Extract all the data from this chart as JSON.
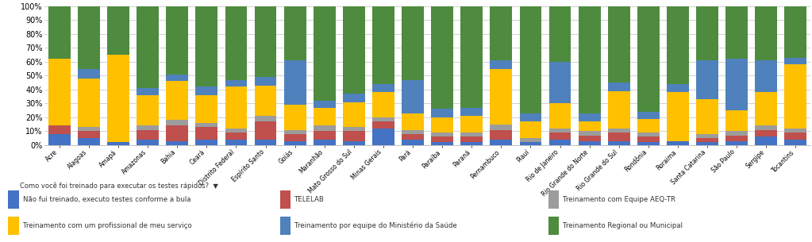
{
  "states": [
    "Acre",
    "Alagoas",
    "Amapá",
    "Amazonas",
    "Bahia",
    "Ceará",
    "Distrito Federal",
    "Espírito Santo",
    "Goiás",
    "Maranhão",
    "Mato Grosso do Sul",
    "Minas Gerais",
    "Pará",
    "Paraíba",
    "Paraná",
    "Pernambuco",
    "Piauí",
    "Rio de Janeiro",
    "Rio Grande do Norte",
    "Rio Grande do Sul",
    "Rondônia",
    "Roraima",
    "Santa Catarina",
    "São Paulo",
    "Sergipe",
    "Tocantins"
  ],
  "series_names": [
    "Não fui treinado, executo testes conforme a bula",
    "TELELAB",
    "Treinamento com Equipe AEQ-TR",
    "Treinamento com um profissional de meu serviço",
    "Treinamento por equipe do Ministério da Saúde",
    "Treinamento Regional ou Municipal"
  ],
  "series_data": [
    [
      0.08,
      0.05,
      0.02,
      0.04,
      0.03,
      0.04,
      0.04,
      0.04,
      0.03,
      0.04,
      0.03,
      0.12,
      0.04,
      0.02,
      0.02,
      0.04,
      0.02,
      0.04,
      0.03,
      0.03,
      0.02,
      0.03,
      0.02,
      0.03,
      0.06,
      0.04
    ],
    [
      0.06,
      0.05,
      0.0,
      0.07,
      0.11,
      0.09,
      0.05,
      0.13,
      0.05,
      0.06,
      0.07,
      0.05,
      0.04,
      0.04,
      0.04,
      0.07,
      0.0,
      0.05,
      0.04,
      0.06,
      0.04,
      0.0,
      0.03,
      0.04,
      0.05,
      0.05
    ],
    [
      0.0,
      0.03,
      0.0,
      0.03,
      0.04,
      0.03,
      0.03,
      0.04,
      0.03,
      0.04,
      0.03,
      0.03,
      0.03,
      0.03,
      0.03,
      0.04,
      0.03,
      0.03,
      0.03,
      0.03,
      0.03,
      0.0,
      0.03,
      0.03,
      0.03,
      0.03
    ],
    [
      0.48,
      0.35,
      0.63,
      0.22,
      0.28,
      0.2,
      0.3,
      0.22,
      0.18,
      0.13,
      0.18,
      0.18,
      0.12,
      0.11,
      0.12,
      0.4,
      0.12,
      0.18,
      0.07,
      0.27,
      0.1,
      0.35,
      0.25,
      0.15,
      0.24,
      0.46
    ],
    [
      0.0,
      0.07,
      0.0,
      0.05,
      0.05,
      0.06,
      0.05,
      0.06,
      0.32,
      0.05,
      0.06,
      0.06,
      0.24,
      0.06,
      0.06,
      0.06,
      0.06,
      0.3,
      0.06,
      0.06,
      0.05,
      0.06,
      0.28,
      0.37,
      0.23,
      0.05
    ],
    [
      0.38,
      0.45,
      0.35,
      0.59,
      0.49,
      0.58,
      0.53,
      0.51,
      0.39,
      0.68,
      0.63,
      0.56,
      0.53,
      0.74,
      0.73,
      0.39,
      0.77,
      0.4,
      0.77,
      0.55,
      0.76,
      0.56,
      0.39,
      0.38,
      0.39,
      0.37
    ]
  ],
  "colors": [
    "#4472C4",
    "#C0504D",
    "#9C9C9C",
    "#FFC000",
    "#4F81BD",
    "#4E8B3F"
  ],
  "ytick_labels": [
    "0%",
    "10%",
    "20%",
    "30%",
    "40%",
    "50%",
    "60%",
    "70%",
    "80%",
    "90%",
    "100%"
  ],
  "legend_title": "Como você foi treinado para executar os testes rápidos?  ▼",
  "bg_color": "#FFFFFF",
  "grid_color": "#BFBFBF"
}
